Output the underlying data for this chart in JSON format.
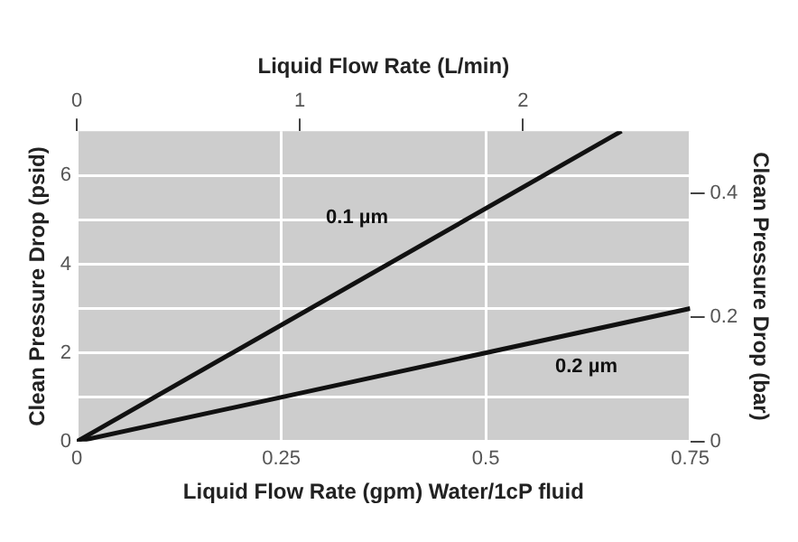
{
  "chart_data": {
    "type": "line",
    "xlabel": "Liquid Flow Rate (gpm) Water/1cP fluid",
    "x2label": "Liquid Flow Rate (L/min)",
    "ylabel": "Clean Pressure Drop (psid)",
    "y2label": "Clean Pressure Drop (bar)",
    "xlim": [
      0,
      0.75
    ],
    "xticks": [
      0,
      0.25,
      0.5,
      0.75
    ],
    "x2lim": [
      0,
      2.75
    ],
    "x2ticks": [
      0,
      1,
      2
    ],
    "ylim": [
      0,
      7
    ],
    "yticks": [
      0,
      {
        "value": 1,
        "label": null
      },
      2,
      {
        "value": 3,
        "label": null
      },
      4,
      {
        "value": 5,
        "label": null
      },
      6
    ],
    "y2lim": [
      0,
      0.5
    ],
    "y2ticks": [
      0,
      0.2,
      0.4
    ],
    "grid": true,
    "legend": false,
    "marker": "none",
    "line_style": "solid",
    "series": [
      {
        "name": "0.1 µm",
        "color": "#111111",
        "x": [
          0,
          0.666
        ],
        "values": [
          0,
          7
        ]
      },
      {
        "name": "0.2 µm",
        "color": "#111111",
        "x": [
          0,
          0.75
        ],
        "values": [
          0,
          3.0
        ]
      }
    ]
  }
}
